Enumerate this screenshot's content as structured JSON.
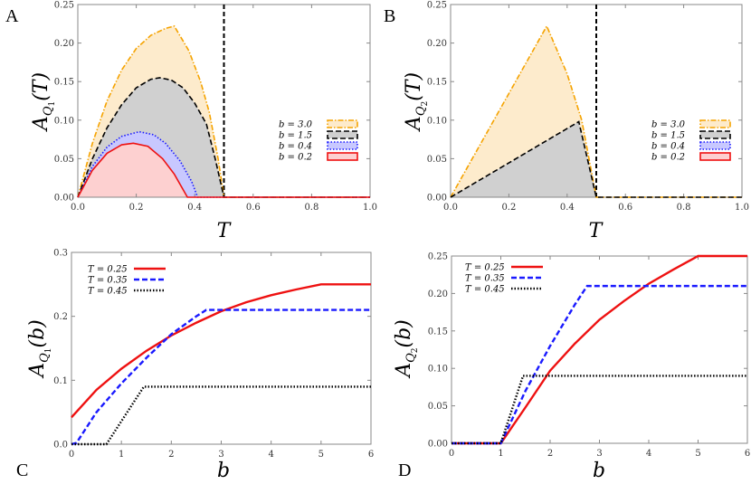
{
  "chart_data": [
    {
      "panel": "A",
      "type": "area",
      "xlabel": "T",
      "ylabel": {
        "base": "A",
        "sub": "Q",
        "subsub": "1",
        "arg": "(T)"
      },
      "xlim": [
        0,
        1
      ],
      "ylim": [
        0,
        0.25
      ],
      "xticks": [
        "0.0",
        "0.2",
        "0.4",
        "0.6",
        "0.8",
        "1.0"
      ],
      "yticks": [
        "0.00",
        "0.05",
        "0.10",
        "0.15",
        "0.20",
        "0.25"
      ],
      "legend_position": "right",
      "vertical_line_x": 0.5,
      "series": [
        {
          "name": "b = 3.0",
          "color": "#f5a300",
          "fill": "#fdebcc",
          "style": "dashdot",
          "points": [
            [
              0,
              0
            ],
            [
              0.05,
              0.07
            ],
            [
              0.1,
              0.125
            ],
            [
              0.15,
              0.165
            ],
            [
              0.2,
              0.193
            ],
            [
              0.25,
              0.21
            ],
            [
              0.3,
              0.219
            ],
            [
              0.33,
              0.222
            ],
            [
              0.38,
              0.19
            ],
            [
              0.42,
              0.15
            ],
            [
              0.45,
              0.11
            ],
            [
              0.48,
              0.05
            ],
            [
              0.5,
              0
            ],
            [
              1,
              0
            ]
          ]
        },
        {
          "name": "b = 1.5",
          "color": "#000000",
          "fill": "#d0d0d0",
          "style": "dashed",
          "points": [
            [
              0,
              0
            ],
            [
              0.05,
              0.05
            ],
            [
              0.1,
              0.09
            ],
            [
              0.15,
              0.12
            ],
            [
              0.2,
              0.142
            ],
            [
              0.25,
              0.153
            ],
            [
              0.28,
              0.155
            ],
            [
              0.32,
              0.152
            ],
            [
              0.36,
              0.142
            ],
            [
              0.4,
              0.122
            ],
            [
              0.44,
              0.095
            ],
            [
              0.47,
              0.05
            ],
            [
              0.5,
              0
            ],
            [
              1,
              0
            ]
          ]
        },
        {
          "name": "b = 0.4",
          "color": "#1a1aff",
          "fill": "#c8c8ff",
          "style": "dotted",
          "points": [
            [
              0,
              0
            ],
            [
              0.05,
              0.04
            ],
            [
              0.1,
              0.065
            ],
            [
              0.15,
              0.079
            ],
            [
              0.21,
              0.085
            ],
            [
              0.26,
              0.081
            ],
            [
              0.3,
              0.07
            ],
            [
              0.35,
              0.047
            ],
            [
              0.39,
              0.02
            ],
            [
              0.41,
              0
            ],
            [
              1,
              0
            ]
          ]
        },
        {
          "name": "b = 0.2",
          "color": "#ee1111",
          "fill": "#fdd0d0",
          "style": "solid",
          "points": [
            [
              0,
              0
            ],
            [
              0.05,
              0.035
            ],
            [
              0.1,
              0.057
            ],
            [
              0.15,
              0.068
            ],
            [
              0.19,
              0.07
            ],
            [
              0.24,
              0.066
            ],
            [
              0.29,
              0.05
            ],
            [
              0.33,
              0.03
            ],
            [
              0.375,
              0
            ],
            [
              1,
              0
            ]
          ]
        }
      ]
    },
    {
      "panel": "B",
      "type": "area",
      "xlabel": "T",
      "ylabel": {
        "base": "A",
        "sub": "Q",
        "subsub": "2",
        "arg": "(T)"
      },
      "xlim": [
        0,
        1
      ],
      "ylim": [
        0,
        0.25
      ],
      "xticks": [
        "0.0",
        "0.2",
        "0.4",
        "0.6",
        "0.8",
        "1.0"
      ],
      "yticks": [
        "0.00",
        "0.05",
        "0.10",
        "0.15",
        "0.20",
        "0.25"
      ],
      "legend_position": "right",
      "vertical_line_x": 0.5,
      "series": [
        {
          "name": "b = 3.0",
          "color": "#f5a300",
          "fill": "#fdebcc",
          "style": "dashdot",
          "points": [
            [
              0,
              0
            ],
            [
              0.33,
              0.222
            ],
            [
              0.4,
              0.16
            ],
            [
              0.45,
              0.1
            ],
            [
              0.5,
              0
            ],
            [
              1,
              0
            ]
          ]
        },
        {
          "name": "b = 1.5",
          "color": "#000000",
          "fill": "#d0d0d0",
          "style": "dashed",
          "points": [
            [
              0,
              0
            ],
            [
              0.44,
              0.098
            ],
            [
              0.5,
              0
            ],
            [
              1,
              0
            ]
          ]
        },
        {
          "name": "b = 0.4",
          "color": "#1a1aff",
          "fill": "#c8c8ff",
          "style": "dotted",
          "points": []
        },
        {
          "name": "b = 0.2",
          "color": "#ee1111",
          "fill": "#fdd0d0",
          "style": "solid",
          "points": []
        }
      ]
    },
    {
      "panel": "C",
      "type": "line",
      "xlabel": "b",
      "ylabel": {
        "base": "A",
        "sub": "Q",
        "subsub": "1",
        "arg": "(b)"
      },
      "xlim": [
        0,
        6
      ],
      "ylim": [
        0,
        0.3
      ],
      "xticks": [
        "0",
        "1",
        "2",
        "3",
        "4",
        "5",
        "6"
      ],
      "yticks": [
        "0.0",
        "0.1",
        "0.2",
        "0.3"
      ],
      "legend_position": "top-left",
      "series": [
        {
          "name": "T = 0.25",
          "color": "#ee1111",
          "style": "solid",
          "points": [
            [
              0,
              0.042
            ],
            [
              0.5,
              0.085
            ],
            [
              1,
              0.118
            ],
            [
              1.5,
              0.146
            ],
            [
              2,
              0.17
            ],
            [
              2.5,
              0.19
            ],
            [
              3,
              0.208
            ],
            [
              3.5,
              0.222
            ],
            [
              4,
              0.233
            ],
            [
              4.5,
              0.242
            ],
            [
              5,
              0.25
            ],
            [
              6,
              0.25
            ]
          ]
        },
        {
          "name": "T = 0.35",
          "color": "#1a1aff",
          "style": "dashed",
          "points": [
            [
              0,
              0
            ],
            [
              0.1,
              0.002
            ],
            [
              0.5,
              0.05
            ],
            [
              1,
              0.095
            ],
            [
              1.5,
              0.135
            ],
            [
              2,
              0.172
            ],
            [
              2.5,
              0.2
            ],
            [
              2.7,
              0.21
            ],
            [
              6,
              0.21
            ]
          ]
        },
        {
          "name": "T = 0.45",
          "color": "#000000",
          "style": "dotted",
          "points": [
            [
              0,
              0
            ],
            [
              0.7,
              0
            ],
            [
              1.45,
              0.09
            ],
            [
              6,
              0.09
            ]
          ]
        }
      ]
    },
    {
      "panel": "D",
      "type": "line",
      "xlabel": "b",
      "ylabel": {
        "base": "A",
        "sub": "Q",
        "subsub": "2",
        "arg": "(b)"
      },
      "xlim": [
        0,
        6
      ],
      "ylim": [
        0,
        0.25
      ],
      "xticks": [
        "0",
        "1",
        "2",
        "3",
        "4",
        "5",
        "6"
      ],
      "yticks": [
        "0.00",
        "0.05",
        "0.10",
        "0.15",
        "0.20",
        "0.25"
      ],
      "legend_position": "top-left",
      "series": [
        {
          "name": "T = 0.25",
          "color": "#ee1111",
          "style": "solid",
          "points": [
            [
              0,
              0
            ],
            [
              1,
              0
            ],
            [
              1.5,
              0.048
            ],
            [
              2,
              0.097
            ],
            [
              2.5,
              0.133
            ],
            [
              3,
              0.165
            ],
            [
              3.5,
              0.19
            ],
            [
              4,
              0.213
            ],
            [
              4.5,
              0.232
            ],
            [
              5,
              0.25
            ],
            [
              6,
              0.25
            ]
          ]
        },
        {
          "name": "T = 0.35",
          "color": "#1a1aff",
          "style": "dashed",
          "points": [
            [
              0,
              0
            ],
            [
              1,
              0
            ],
            [
              1.5,
              0.07
            ],
            [
              2,
              0.13
            ],
            [
              2.5,
              0.185
            ],
            [
              2.75,
              0.21
            ],
            [
              6,
              0.21
            ]
          ]
        },
        {
          "name": "T = 0.45",
          "color": "#000000",
          "style": "dotted",
          "points": [
            [
              0,
              0
            ],
            [
              1,
              0
            ],
            [
              1.45,
              0.09
            ],
            [
              6,
              0.09
            ]
          ]
        }
      ]
    }
  ]
}
